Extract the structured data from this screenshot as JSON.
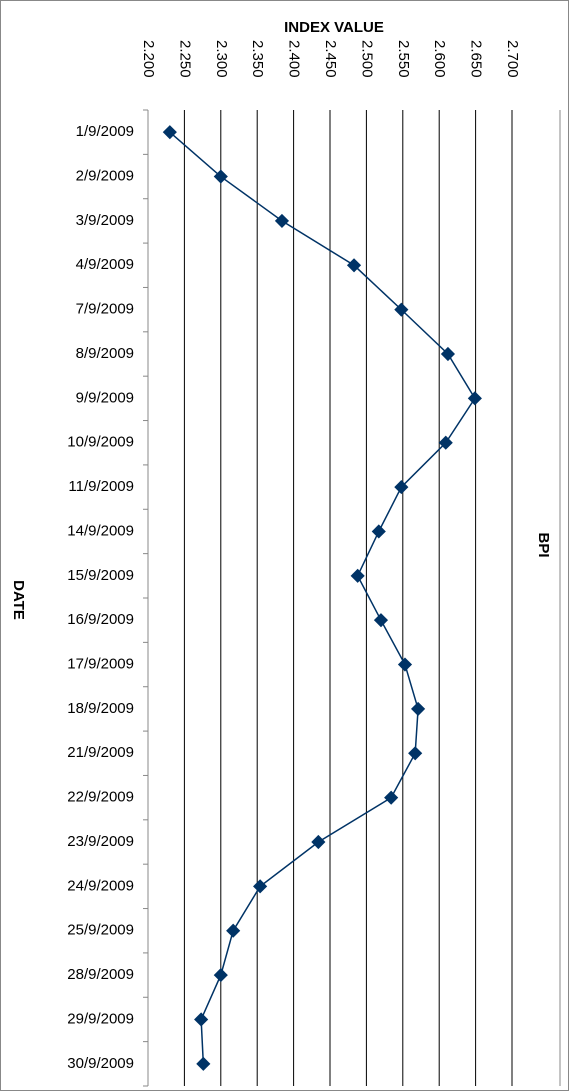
{
  "chart_data": {
    "type": "line",
    "orientation": "horizontal",
    "title": "BPI",
    "x_label": "INDEX VALUE",
    "y_label": "DATE",
    "categories": [
      "1/9/2009",
      "2/9/2009",
      "3/9/2009",
      "4/9/2009",
      "7/9/2009",
      "8/9/2009",
      "9/9/2009",
      "10/9/2009",
      "11/9/2009",
      "14/9/2009",
      "15/9/2009",
      "16/9/2009",
      "17/9/2009",
      "18/9/2009",
      "21/9/2009",
      "22/9/2009",
      "23/9/2009",
      "24/9/2009",
      "25/9/2009",
      "28/9/2009",
      "29/9/2009",
      "30/9/2009"
    ],
    "values": [
      2230,
      2300,
      2384,
      2483,
      2548,
      2612,
      2649,
      2609,
      2548,
      2517,
      2488,
      2520,
      2553,
      2571,
      2567,
      2534,
      2434,
      2354,
      2317,
      2300,
      2273,
      2276
    ],
    "color": "#003366",
    "xlim": [
      2200,
      2700
    ],
    "xticks": [
      {
        "value": 2200,
        "label": "2.200"
      },
      {
        "value": 2250,
        "label": "2.250"
      },
      {
        "value": 2300,
        "label": "2.300"
      },
      {
        "value": 2350,
        "label": "2.350"
      },
      {
        "value": 2400,
        "label": "2.400"
      },
      {
        "value": 2450,
        "label": "2.450"
      },
      {
        "value": 2500,
        "label": "2.500"
      },
      {
        "value": 2550,
        "label": "2.550"
      },
      {
        "value": 2600,
        "label": "2.600"
      },
      {
        "value": 2650,
        "label": "2.650"
      },
      {
        "value": 2700,
        "label": "2.700"
      }
    ],
    "grid": true
  }
}
